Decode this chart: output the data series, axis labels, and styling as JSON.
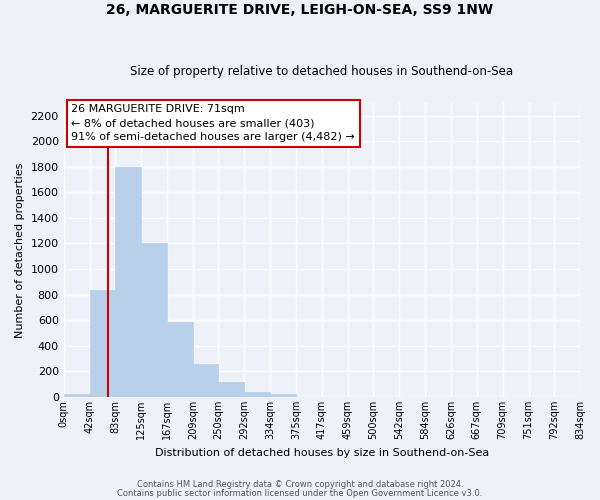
{
  "title": "26, MARGUERITE DRIVE, LEIGH-ON-SEA, SS9 1NW",
  "subtitle": "Size of property relative to detached houses in Southend-on-Sea",
  "xlabel": "Distribution of detached houses by size in Southend-on-Sea",
  "ylabel": "Number of detached properties",
  "bar_edges": [
    0,
    42,
    83,
    125,
    167,
    209,
    250,
    292,
    334,
    375,
    417,
    459,
    500,
    542,
    584,
    626,
    667,
    709,
    751,
    792,
    834
  ],
  "bar_heights": [
    25,
    840,
    1800,
    1200,
    590,
    255,
    120,
    40,
    25,
    0,
    0,
    0,
    0,
    0,
    0,
    0,
    0,
    0,
    0,
    0
  ],
  "tick_labels": [
    "0sqm",
    "42sqm",
    "83sqm",
    "125sqm",
    "167sqm",
    "209sqm",
    "250sqm",
    "292sqm",
    "334sqm",
    "375sqm",
    "417sqm",
    "459sqm",
    "500sqm",
    "542sqm",
    "584sqm",
    "626sqm",
    "667sqm",
    "709sqm",
    "751sqm",
    "792sqm",
    "834sqm"
  ],
  "bar_color": "#b8d0ea",
  "bar_edgecolor": "#b8d0ea",
  "property_line_x": 71,
  "property_line_color": "#cc0000",
  "ylim": [
    0,
    2300
  ],
  "yticks": [
    0,
    200,
    400,
    600,
    800,
    1000,
    1200,
    1400,
    1600,
    1800,
    2000,
    2200
  ],
  "annotation_title": "26 MARGUERITE DRIVE: 71sqm",
  "annotation_line1": "← 8% of detached houses are smaller (403)",
  "annotation_line2": "91% of semi-detached houses are larger (4,482) →",
  "annotation_box_color": "#ffffff",
  "annotation_box_edge": "#cc0000",
  "footer1": "Contains HM Land Registry data © Crown copyright and database right 2024.",
  "footer2": "Contains public sector information licensed under the Open Government Licence v3.0.",
  "background_color": "#eef2f8",
  "plot_background": "#eef2f8",
  "grid_color": "#ffffff"
}
